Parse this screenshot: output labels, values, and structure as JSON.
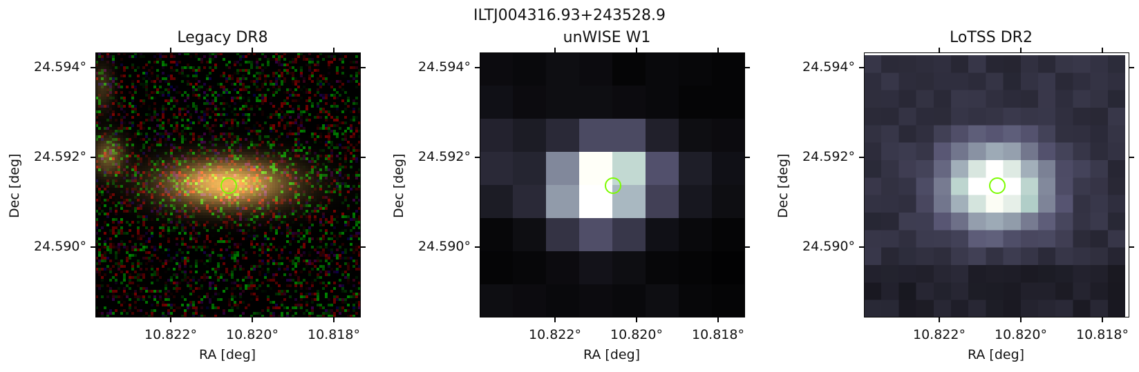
{
  "figure": {
    "suptitle": "ILTJ004316.93+243528.9",
    "panels": [
      {
        "title": "Legacy DR8",
        "xlabel": "RA [deg]",
        "ylabel": "Dec [deg]",
        "xticks": [
          "10.822°",
          "10.820°",
          "10.818°"
        ],
        "yticks": [
          "24.594°",
          "24.592°",
          "24.590°"
        ],
        "image": {
          "kind": "rgb",
          "grid": 96
        },
        "marker": {
          "shape": "circle",
          "color": "#7cfc00"
        }
      },
      {
        "title": "unWISE W1",
        "xlabel": "RA [deg]",
        "ylabel": "Dec [deg]",
        "xticks": [
          "10.822°",
          "10.820°",
          "10.818°"
        ],
        "yticks": [
          "24.594°",
          "24.592°",
          "24.590°"
        ],
        "image": {
          "kind": "bone",
          "grid": 8
        },
        "marker": {
          "shape": "circle",
          "color": "#7cfc00"
        }
      },
      {
        "title": "LoTSS DR2",
        "xlabel": "RA [deg]",
        "ylabel": "Dec [deg]",
        "xticks": [
          "10.822°",
          "10.820°",
          "10.818°"
        ],
        "yticks": [
          "24.594°",
          "24.592°",
          "24.590°"
        ],
        "image": {
          "kind": "bone",
          "grid": 15
        },
        "marker": {
          "shape": "circle",
          "color": "#7cfc00"
        }
      }
    ]
  }
}
